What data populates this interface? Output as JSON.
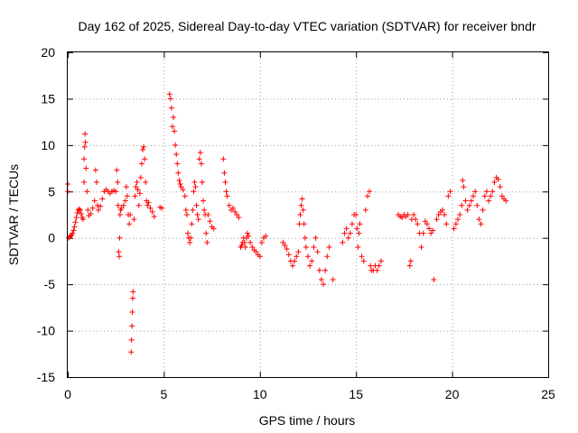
{
  "chart_data": {
    "type": "scatter",
    "title": "Day 162 of 2025, Sidereal Day-to-day VTEC variation (SDTVAR) for receiver bndr",
    "xlabel": "GPS time / hours",
    "ylabel": "SDTVAR / TECUs",
    "xlim": [
      0,
      25
    ],
    "ylim": [
      -15,
      20
    ],
    "xticks": [
      0,
      5,
      10,
      15,
      20,
      25
    ],
    "yticks": [
      -15,
      -10,
      -5,
      0,
      5,
      10,
      15,
      20
    ],
    "grid": true,
    "marker": "+",
    "color": "#ff0000",
    "series": [
      {
        "name": "SDTVAR",
        "points": [
          [
            0.0,
            5.8
          ],
          [
            0.0,
            5.0
          ],
          [
            0.05,
            0.0
          ],
          [
            0.1,
            0.1
          ],
          [
            0.15,
            0.2
          ],
          [
            0.2,
            0.3
          ],
          [
            0.25,
            0.5
          ],
          [
            0.3,
            0.8
          ],
          [
            0.35,
            1.2
          ],
          [
            0.4,
            1.7
          ],
          [
            0.45,
            2.2
          ],
          [
            0.5,
            2.7
          ],
          [
            0.55,
            3.0
          ],
          [
            0.6,
            3.1
          ],
          [
            0.65,
            3.0
          ],
          [
            0.7,
            2.6
          ],
          [
            0.75,
            2.2
          ],
          [
            0.8,
            2.0
          ],
          [
            0.85,
            6.0
          ],
          [
            0.85,
            8.5
          ],
          [
            0.88,
            9.8
          ],
          [
            0.9,
            11.2
          ],
          [
            0.92,
            10.3
          ],
          [
            0.95,
            7.5
          ],
          [
            1.0,
            5.0
          ],
          [
            1.05,
            3.0
          ],
          [
            1.1,
            2.4
          ],
          [
            1.2,
            2.6
          ],
          [
            1.3,
            3.2
          ],
          [
            1.4,
            4.0
          ],
          [
            1.45,
            7.3
          ],
          [
            1.5,
            6.0
          ],
          [
            1.55,
            3.5
          ],
          [
            1.6,
            3.0
          ],
          [
            1.7,
            3.4
          ],
          [
            1.8,
            4.2
          ],
          [
            1.9,
            5.0
          ],
          [
            2.0,
            5.2
          ],
          [
            2.1,
            5.0
          ],
          [
            2.2,
            4.8
          ],
          [
            2.3,
            5.0
          ],
          [
            2.4,
            5.1
          ],
          [
            2.5,
            5.0
          ],
          [
            2.55,
            7.3
          ],
          [
            2.6,
            6.0
          ],
          [
            2.62,
            3.5
          ],
          [
            2.65,
            -1.5
          ],
          [
            2.68,
            -2.0
          ],
          [
            2.7,
            0.0
          ],
          [
            2.72,
            2.5
          ],
          [
            2.75,
            3.0
          ],
          [
            2.8,
            3.2
          ],
          [
            2.9,
            3.5
          ],
          [
            3.0,
            4.0
          ],
          [
            3.05,
            5.5
          ],
          [
            3.1,
            4.5
          ],
          [
            3.15,
            2.5
          ],
          [
            3.2,
            1.5
          ],
          [
            3.25,
            2.5
          ],
          [
            3.3,
            -12.3
          ],
          [
            3.32,
            -11.0
          ],
          [
            3.34,
            -9.5
          ],
          [
            3.36,
            -8.0
          ],
          [
            3.38,
            -6.5
          ],
          [
            3.4,
            -5.8
          ],
          [
            3.45,
            2.0
          ],
          [
            3.5,
            4.5
          ],
          [
            3.55,
            5.5
          ],
          [
            3.6,
            6.0
          ],
          [
            3.65,
            5.2
          ],
          [
            3.7,
            3.5
          ],
          [
            3.75,
            4.8
          ],
          [
            3.8,
            6.5
          ],
          [
            3.85,
            8.0
          ],
          [
            3.9,
            9.5
          ],
          [
            3.95,
            9.8
          ],
          [
            4.0,
            8.5
          ],
          [
            4.05,
            6.0
          ],
          [
            4.1,
            4.0
          ],
          [
            4.15,
            3.5
          ],
          [
            4.2,
            3.8
          ],
          [
            4.3,
            3.2
          ],
          [
            4.4,
            2.8
          ],
          [
            4.5,
            2.3
          ],
          [
            4.8,
            3.3
          ],
          [
            4.9,
            3.2
          ],
          [
            5.3,
            15.5
          ],
          [
            5.35,
            15.0
          ],
          [
            5.4,
            14.0
          ],
          [
            5.45,
            12.0
          ],
          [
            5.5,
            13.0
          ],
          [
            5.55,
            11.5
          ],
          [
            5.6,
            10.0
          ],
          [
            5.65,
            9.0
          ],
          [
            5.7,
            8.0
          ],
          [
            5.75,
            7.0
          ],
          [
            5.8,
            6.2
          ],
          [
            5.85,
            5.8
          ],
          [
            5.9,
            5.5
          ],
          [
            6.0,
            5.2
          ],
          [
            6.1,
            4.5
          ],
          [
            6.15,
            3.0
          ],
          [
            6.2,
            2.5
          ],
          [
            6.25,
            0.5
          ],
          [
            6.3,
            0.0
          ],
          [
            6.35,
            -0.5
          ],
          [
            6.4,
            0.0
          ],
          [
            6.45,
            1.5
          ],
          [
            6.5,
            3.0
          ],
          [
            6.55,
            5.0
          ],
          [
            6.6,
            6.0
          ],
          [
            6.65,
            5.5
          ],
          [
            6.7,
            3.5
          ],
          [
            6.75,
            2.5
          ],
          [
            6.8,
            2.0
          ],
          [
            6.85,
            8.5
          ],
          [
            6.9,
            9.2
          ],
          [
            6.95,
            8.0
          ],
          [
            7.0,
            6.0
          ],
          [
            7.05,
            4.0
          ],
          [
            7.1,
            3.0
          ],
          [
            7.15,
            2.5
          ],
          [
            7.2,
            0.5
          ],
          [
            7.25,
            -0.5
          ],
          [
            7.3,
            2.5
          ],
          [
            7.4,
            1.8
          ],
          [
            7.5,
            1.2
          ],
          [
            7.6,
            1.0
          ],
          [
            8.1,
            8.5
          ],
          [
            8.15,
            7.0
          ],
          [
            8.2,
            6.0
          ],
          [
            8.25,
            5.0
          ],
          [
            8.3,
            4.5
          ],
          [
            8.4,
            3.5
          ],
          [
            8.5,
            3.0
          ],
          [
            8.6,
            3.2
          ],
          [
            8.7,
            2.8
          ],
          [
            8.8,
            2.5
          ],
          [
            8.9,
            2.2
          ],
          [
            9.0,
            -1.0
          ],
          [
            9.05,
            -0.8
          ],
          [
            9.1,
            -0.5
          ],
          [
            9.15,
            0.0
          ],
          [
            9.2,
            -0.5
          ],
          [
            9.25,
            -1.0
          ],
          [
            9.3,
            0.0
          ],
          [
            9.35,
            0.5
          ],
          [
            9.4,
            0.2
          ],
          [
            9.5,
            -0.5
          ],
          [
            9.6,
            -1.0
          ],
          [
            9.7,
            -1.3
          ],
          [
            9.8,
            -1.5
          ],
          [
            9.9,
            -1.8
          ],
          [
            10.0,
            -2.0
          ],
          [
            10.1,
            -0.5
          ],
          [
            10.2,
            0.0
          ],
          [
            10.3,
            0.2
          ],
          [
            11.2,
            -0.5
          ],
          [
            11.3,
            -0.8
          ],
          [
            11.4,
            -1.2
          ],
          [
            11.5,
            -1.8
          ],
          [
            11.6,
            -2.5
          ],
          [
            11.7,
            -3.0
          ],
          [
            11.8,
            -2.5
          ],
          [
            11.9,
            -2.0
          ],
          [
            12.0,
            -1.5
          ],
          [
            12.05,
            1.5
          ],
          [
            12.1,
            2.5
          ],
          [
            12.15,
            3.5
          ],
          [
            12.2,
            4.2
          ],
          [
            12.25,
            3.0
          ],
          [
            12.3,
            1.5
          ],
          [
            12.35,
            0.0
          ],
          [
            12.4,
            -1.0
          ],
          [
            12.5,
            -2.0
          ],
          [
            12.6,
            -3.0
          ],
          [
            12.7,
            -2.5
          ],
          [
            12.8,
            -1.0
          ],
          [
            12.9,
            0.0
          ],
          [
            13.0,
            -1.5
          ],
          [
            13.1,
            -3.5
          ],
          [
            13.2,
            -4.5
          ],
          [
            13.3,
            -5.0
          ],
          [
            13.4,
            -3.5
          ],
          [
            13.5,
            -2.0
          ],
          [
            13.6,
            -1.0
          ],
          [
            13.8,
            -4.5
          ],
          [
            14.3,
            -0.5
          ],
          [
            14.4,
            0.5
          ],
          [
            14.5,
            1.0
          ],
          [
            14.6,
            0.0
          ],
          [
            14.7,
            0.5
          ],
          [
            14.8,
            1.5
          ],
          [
            14.9,
            2.5
          ],
          [
            15.0,
            2.5
          ],
          [
            15.05,
            1.0
          ],
          [
            15.1,
            -1.0
          ],
          [
            15.15,
            0.5
          ],
          [
            15.2,
            1.5
          ],
          [
            15.3,
            -2.0
          ],
          [
            15.4,
            -2.5
          ],
          [
            15.5,
            3.0
          ],
          [
            15.6,
            4.5
          ],
          [
            15.7,
            5.0
          ],
          [
            15.75,
            -3.0
          ],
          [
            15.8,
            -3.5
          ],
          [
            15.9,
            -3.5
          ],
          [
            16.0,
            -3.0
          ],
          [
            16.1,
            -3.5
          ],
          [
            16.2,
            -3.0
          ],
          [
            16.3,
            -2.5
          ],
          [
            17.2,
            2.5
          ],
          [
            17.3,
            2.3
          ],
          [
            17.4,
            2.2
          ],
          [
            17.5,
            2.5
          ],
          [
            17.6,
            2.3
          ],
          [
            17.7,
            2.5
          ],
          [
            17.8,
            -3.0
          ],
          [
            17.85,
            -2.5
          ],
          [
            17.9,
            2.0
          ],
          [
            18.0,
            2.5
          ],
          [
            18.1,
            2.0
          ],
          [
            18.2,
            1.5
          ],
          [
            18.3,
            0.5
          ],
          [
            18.4,
            -1.0
          ],
          [
            18.5,
            0.5
          ],
          [
            18.6,
            1.8
          ],
          [
            18.7,
            1.5
          ],
          [
            18.8,
            1.0
          ],
          [
            18.9,
            0.5
          ],
          [
            19.0,
            0.8
          ],
          [
            19.05,
            -4.5
          ],
          [
            19.2,
            2.0
          ],
          [
            19.3,
            2.5
          ],
          [
            19.4,
            2.8
          ],
          [
            19.5,
            3.0
          ],
          [
            19.6,
            2.5
          ],
          [
            19.7,
            1.5
          ],
          [
            19.8,
            4.5
          ],
          [
            19.9,
            5.0
          ],
          [
            20.1,
            1.0
          ],
          [
            20.2,
            1.5
          ],
          [
            20.3,
            2.0
          ],
          [
            20.4,
            2.5
          ],
          [
            20.5,
            3.5
          ],
          [
            20.55,
            6.2
          ],
          [
            20.6,
            5.5
          ],
          [
            20.7,
            4.0
          ],
          [
            20.8,
            3.0
          ],
          [
            20.9,
            3.5
          ],
          [
            21.0,
            4.0
          ],
          [
            21.1,
            4.5
          ],
          [
            21.2,
            5.0
          ],
          [
            21.3,
            3.5
          ],
          [
            21.4,
            2.0
          ],
          [
            21.5,
            1.5
          ],
          [
            21.6,
            3.0
          ],
          [
            21.7,
            4.5
          ],
          [
            21.8,
            5.0
          ],
          [
            21.9,
            4.0
          ],
          [
            22.0,
            4.5
          ],
          [
            22.1,
            5.0
          ],
          [
            22.2,
            6.0
          ],
          [
            22.3,
            6.5
          ],
          [
            22.4,
            6.3
          ],
          [
            22.5,
            5.5
          ],
          [
            22.6,
            4.5
          ],
          [
            22.7,
            4.2
          ],
          [
            22.8,
            4.0
          ]
        ]
      }
    ]
  }
}
